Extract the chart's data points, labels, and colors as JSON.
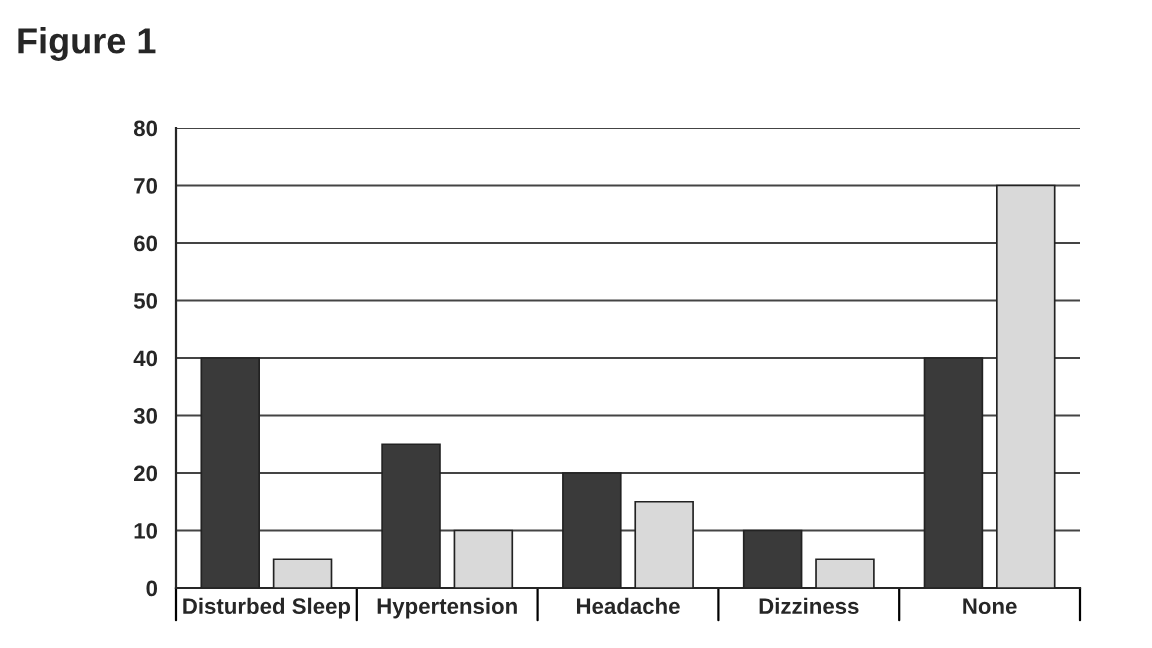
{
  "chart_data": {
    "type": "bar",
    "title": "Figure 1",
    "categories": [
      "Disturbed Sleep",
      "Hypertension",
      "Headache",
      "Dizziness",
      "None"
    ],
    "series": [
      {
        "color": "#3a3a3a",
        "values": [
          40,
          25,
          20,
          10,
          40
        ]
      },
      {
        "color": "#d9d9d9",
        "values": [
          5,
          10,
          15,
          5,
          70
        ]
      }
    ],
    "ylim": [
      0,
      80
    ],
    "yticks": [
      0,
      10,
      20,
      30,
      40,
      50,
      60,
      70,
      80
    ],
    "grid": "y",
    "legend": false
  }
}
